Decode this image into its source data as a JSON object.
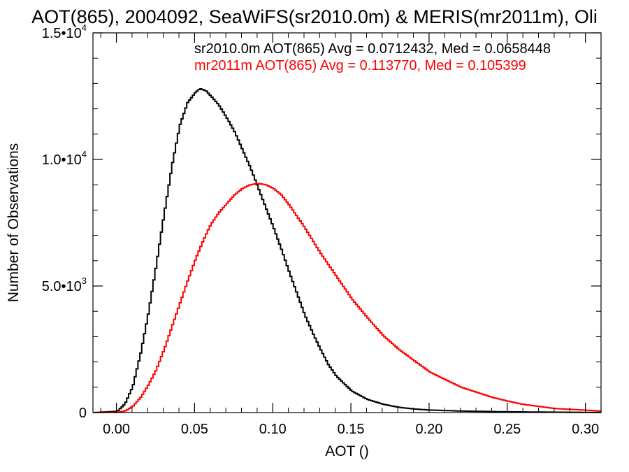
{
  "chart_data": {
    "type": "line",
    "title": "AOT(865), 2004092, SeaWiFS(sr2010.0m) & MERIS(mr2011m), Oli",
    "xlabel": "AOT ()",
    "ylabel": "Number of Observations",
    "xlim": [
      -0.015,
      0.31
    ],
    "ylim": [
      0,
      15000
    ],
    "x_ticks": [
      {
        "value": 0.0,
        "label": "0.00"
      },
      {
        "value": 0.05,
        "label": "0.05"
      },
      {
        "value": 0.1,
        "label": "0.10"
      },
      {
        "value": 0.15,
        "label": "0.15"
      },
      {
        "value": 0.2,
        "label": "0.20"
      },
      {
        "value": 0.25,
        "label": "0.25"
      },
      {
        "value": 0.3,
        "label": "0.30"
      }
    ],
    "y_ticks": [
      {
        "value": 0,
        "mantissa": "0",
        "exponent": ""
      },
      {
        "value": 5000,
        "mantissa": "5.0•10",
        "exponent": "3"
      },
      {
        "value": 10000,
        "mantissa": "1.0•10",
        "exponent": "4"
      },
      {
        "value": 15000,
        "mantissa": "1.5•10",
        "exponent": "4"
      }
    ],
    "legend_placement": "top-right",
    "series": [
      {
        "name": "sr2010.0m",
        "legend": "sr2010.0m AOT(865) Avg = 0.0712432, Med = 0.0658448",
        "color": "#000000",
        "x": [
          -0.015,
          0.0,
          0.005,
          0.01,
          0.015,
          0.02,
          0.025,
          0.03,
          0.035,
          0.04,
          0.045,
          0.05,
          0.053,
          0.057,
          0.06,
          0.065,
          0.07,
          0.075,
          0.08,
          0.085,
          0.09,
          0.095,
          0.1,
          0.105,
          0.11,
          0.115,
          0.12,
          0.125,
          0.13,
          0.135,
          0.14,
          0.15,
          0.16,
          0.17,
          0.18,
          0.19,
          0.2,
          0.22,
          0.25,
          0.28,
          0.31
        ],
        "y": [
          0,
          50,
          350,
          1050,
          2350,
          3950,
          5850,
          7850,
          9750,
          11350,
          12250,
          12650,
          12800,
          12700,
          12500,
          12150,
          11650,
          11100,
          10400,
          9700,
          8900,
          8100,
          7300,
          6450,
          5550,
          4700,
          3850,
          3150,
          2500,
          1900,
          1450,
          850,
          520,
          330,
          210,
          140,
          100,
          60,
          30,
          15,
          5
        ]
      },
      {
        "name": "mr2011m",
        "legend": "mr2011m AOT(865) Avg = 0.113770, Med = 0.105399",
        "color": "#ff0000",
        "x": [
          -0.015,
          0.0,
          0.005,
          0.01,
          0.015,
          0.02,
          0.025,
          0.03,
          0.035,
          0.04,
          0.045,
          0.05,
          0.055,
          0.06,
          0.065,
          0.07,
          0.075,
          0.08,
          0.085,
          0.09,
          0.095,
          0.1,
          0.105,
          0.11,
          0.115,
          0.12,
          0.125,
          0.13,
          0.14,
          0.15,
          0.16,
          0.17,
          0.18,
          0.19,
          0.2,
          0.21,
          0.22,
          0.23,
          0.24,
          0.25,
          0.26,
          0.28,
          0.31
        ],
        "y": [
          0,
          10,
          60,
          250,
          600,
          1100,
          1700,
          2500,
          3400,
          4300,
          5200,
          6050,
          6800,
          7450,
          7900,
          8250,
          8600,
          8850,
          9000,
          9050,
          9000,
          8850,
          8600,
          8200,
          7750,
          7300,
          6800,
          6300,
          5400,
          4500,
          3750,
          3050,
          2500,
          2050,
          1600,
          1300,
          1000,
          800,
          600,
          450,
          320,
          160,
          60
        ]
      }
    ]
  }
}
